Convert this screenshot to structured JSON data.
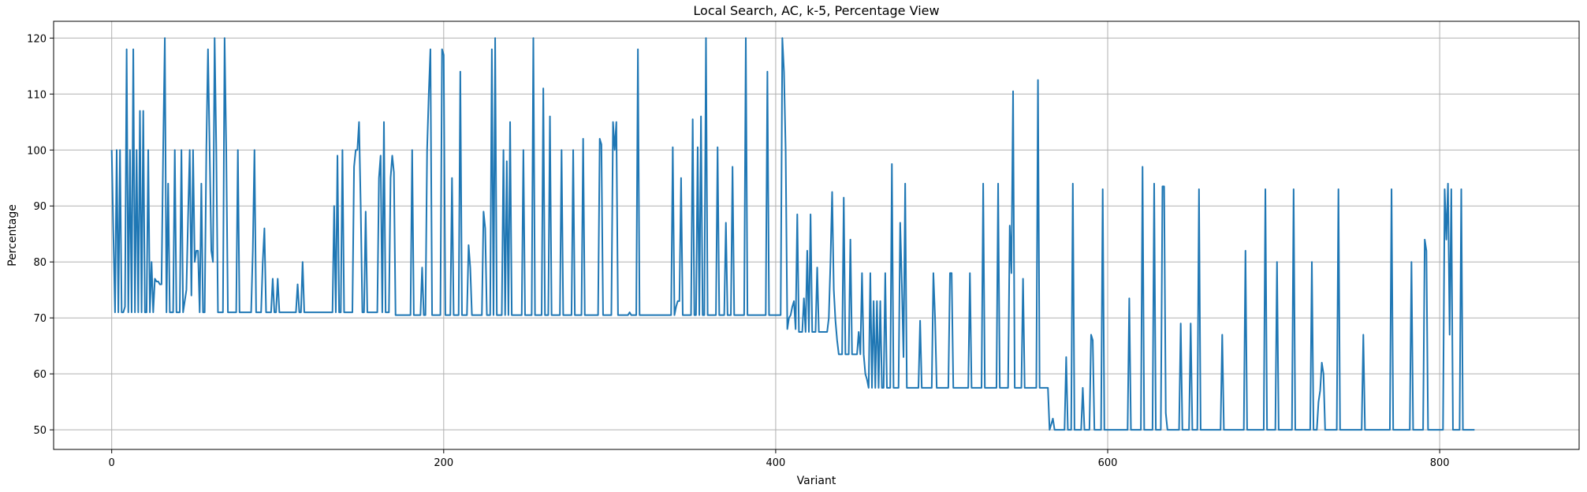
{
  "chart_data": {
    "type": "line",
    "title": "Local Search, AC, k-5, Percentage View",
    "xlabel": "Variant",
    "ylabel": "Percentage",
    "xlim": [
      -35,
      884
    ],
    "ylim": [
      46.5,
      123
    ],
    "xticks": [
      0,
      200,
      400,
      600,
      800
    ],
    "yticks": [
      50,
      60,
      70,
      80,
      90,
      100,
      110,
      120
    ],
    "grid": true,
    "line_color": "#1f77b4",
    "series": [
      {
        "name": "",
        "x_start": 0,
        "x_step": 1,
        "values": [
          100,
          85,
          71,
          100,
          71,
          100,
          71,
          71,
          72,
          118,
          71,
          100,
          71,
          118,
          71,
          100,
          71,
          107,
          71,
          107,
          71,
          71,
          100,
          71,
          80,
          71,
          77,
          76.5,
          76.5,
          76,
          76,
          100,
          120,
          71,
          94,
          71,
          71,
          71,
          100,
          71,
          71,
          71,
          100,
          71,
          73,
          75,
          88,
          100,
          74,
          100,
          80,
          82,
          82,
          71,
          94,
          71,
          71,
          100,
          118,
          100,
          82,
          80,
          120,
          100,
          71,
          71,
          71,
          71,
          120,
          100,
          71,
          71,
          71,
          71,
          71,
          71,
          100,
          71,
          71,
          71,
          71,
          71,
          71,
          71,
          71,
          82,
          100,
          71,
          71,
          71,
          71,
          80,
          86,
          71,
          71,
          71,
          71,
          77,
          71,
          71,
          77,
          71,
          71,
          71,
          71,
          71,
          71,
          71,
          71,
          71,
          71,
          71,
          76,
          71,
          71,
          80,
          71,
          71,
          71,
          71,
          71,
          71,
          71,
          71,
          71,
          71,
          71,
          71,
          71,
          71,
          71,
          71,
          71,
          71,
          90,
          71,
          99,
          71,
          71,
          100,
          71,
          71,
          71,
          71,
          71,
          71,
          97,
          100,
          100,
          105,
          90,
          71,
          71,
          89,
          71,
          71,
          71,
          71,
          71,
          71,
          71,
          95,
          99,
          71,
          105,
          71,
          71,
          71,
          95,
          99,
          96,
          70.5,
          70.5,
          70.5,
          70.5,
          70.5,
          70.5,
          70.5,
          70.5,
          70.5,
          70.5,
          100,
          70.5,
          70.5,
          70.5,
          70.5,
          70.5,
          79,
          70.5,
          70.5,
          100,
          110,
          118,
          70.5,
          70.5,
          70.5,
          70.5,
          70.5,
          70.5,
          118,
          117,
          70.5,
          70.5,
          70.5,
          70.5,
          95,
          70.5,
          70.5,
          70.5,
          70.5,
          114,
          70.5,
          70.5,
          70.5,
          70.5,
          83,
          79,
          70.5,
          70.5,
          70.5,
          70.5,
          70.5,
          70.5,
          70.5,
          89,
          86,
          70.5,
          70.5,
          70.5,
          118,
          70.5,
          120,
          70.5,
          70.5,
          70.5,
          70.5,
          100,
          70.5,
          98,
          70.5,
          105,
          70.5,
          70.5,
          70.5,
          70.5,
          70.5,
          70.5,
          70.5,
          100,
          70.5,
          70.5,
          70.5,
          70.5,
          70.5,
          120,
          70.5,
          70.5,
          70.5,
          70.5,
          70.5,
          111,
          70.5,
          70.5,
          70.5,
          106,
          70.5,
          70.5,
          70.5,
          70.5,
          70.5,
          70.5,
          100,
          70.5,
          70.5,
          70.5,
          70.5,
          70.5,
          70.5,
          100,
          70.5,
          70.5,
          70.5,
          70.5,
          70.5,
          102,
          70.5,
          70.5,
          70.5,
          70.5,
          70.5,
          70.5,
          70.5,
          70.5,
          70.5,
          102,
          101,
          70.5,
          70.5,
          70.5,
          70.5,
          70.5,
          70.5,
          105,
          100,
          105,
          70.5,
          70.5,
          70.5,
          70.5,
          70.5,
          70.5,
          70.5,
          71,
          70.5,
          70.5,
          70.5,
          70.5,
          118,
          70.5,
          70.5,
          70.5,
          70.5,
          70.5,
          70.5,
          70.5,
          70.5,
          70.5,
          70.5,
          70.5,
          70.5,
          70.5,
          70.5,
          70.5,
          70.5,
          70.5,
          70.5,
          70.5,
          70.5,
          100.5,
          70.5,
          72,
          73,
          73,
          95,
          70.5,
          70.5,
          70.5,
          70.5,
          70.5,
          70.5,
          105.5,
          70.5,
          70.5,
          100.5,
          70.5,
          106,
          70.5,
          70.5,
          120,
          70.5,
          70.5,
          70.5,
          70.5,
          70.5,
          70.5,
          100.5,
          70.5,
          70.5,
          70.5,
          70.5,
          87,
          70.5,
          70.5,
          70.5,
          97,
          70.5,
          70.5,
          70.5,
          70.5,
          70.5,
          70.5,
          70.5,
          120,
          70.5,
          70.5,
          70.5,
          70.5,
          70.5,
          70.5,
          70.5,
          70.5,
          70.5,
          70.5,
          70.5,
          70.5,
          114,
          70.5,
          70.5,
          70.5,
          70.5,
          70.5,
          70.5,
          70.5,
          70.5,
          120,
          114,
          100,
          68,
          70,
          70.5,
          72,
          73,
          68,
          88.5,
          67.5,
          67.5,
          67.5,
          73.5,
          67.5,
          82,
          67.5,
          88.5,
          67.5,
          67.5,
          67.5,
          79,
          67.5,
          67.5,
          67.5,
          67.5,
          67.5,
          67.5,
          70,
          80,
          92.5,
          75,
          69.5,
          66,
          63.5,
          63.5,
          63.5,
          91.5,
          63.5,
          63.5,
          63.5,
          84,
          63.5,
          63.5,
          63.5,
          63.5,
          67.5,
          63.5,
          78,
          63.5,
          60,
          59,
          57.5,
          78,
          57.5,
          73,
          57.5,
          73,
          57.5,
          73,
          57.5,
          57.5,
          78,
          57.5,
          57.5,
          57.5,
          97.5,
          57.5,
          57.5,
          57.5,
          57.5,
          87,
          76,
          63,
          94,
          57.5,
          57.5,
          57.5,
          57.5,
          57.5,
          57.5,
          57.5,
          57.5,
          69.5,
          57.5,
          57.5,
          57.5,
          57.5,
          57.5,
          57.5,
          57.5,
          78,
          70,
          57.5,
          57.5,
          57.5,
          57.5,
          57.5,
          57.5,
          57.5,
          57.5,
          78,
          78,
          57.5,
          57.5,
          57.5,
          57.5,
          57.5,
          57.5,
          57.5,
          57.5,
          57.5,
          57.5,
          78,
          57.5,
          57.5,
          57.5,
          57.5,
          57.5,
          57.5,
          57.5,
          94,
          57.5,
          57.5,
          57.5,
          57.5,
          57.5,
          57.5,
          57.5,
          57.5,
          94,
          57.5,
          57.5,
          57.5,
          57.5,
          57.5,
          57.5,
          86.5,
          78,
          110.5,
          57.5,
          57.5,
          57.5,
          57.5,
          57.5,
          77,
          57.5,
          57.5,
          57.5,
          57.5,
          57.5,
          57.5,
          57.5,
          57.5,
          112.5,
          57.5,
          57.5,
          57.5,
          57.5,
          57.5,
          57.5,
          50,
          51,
          52,
          50,
          50,
          50,
          50,
          50,
          50,
          50,
          63,
          50,
          50,
          50,
          94,
          50,
          50,
          50,
          50,
          50,
          57.5,
          50,
          50,
          50,
          50,
          67,
          66,
          50,
          50,
          50,
          50,
          50,
          93,
          50,
          50,
          50,
          50,
          50,
          50,
          50,
          50,
          50,
          50,
          50,
          50,
          50,
          50,
          50,
          73.5,
          50,
          50,
          50,
          50,
          50,
          50,
          50,
          97,
          50,
          50,
          50,
          50,
          50,
          50,
          94,
          50,
          50,
          50,
          50,
          93.5,
          93.5,
          53,
          50,
          50,
          50,
          50,
          50,
          50,
          50,
          50,
          69,
          50,
          50,
          50,
          50,
          50,
          69,
          50,
          50,
          50,
          50,
          93,
          50,
          50,
          50,
          50,
          50,
          50,
          50,
          50,
          50,
          50,
          50,
          50,
          50,
          67,
          50,
          50,
          50,
          50,
          50,
          50,
          50,
          50,
          50,
          50,
          50,
          50,
          50,
          82,
          50,
          50,
          50,
          50,
          50,
          50,
          50,
          50,
          50,
          50,
          50,
          93,
          50,
          50,
          50,
          50,
          50,
          50,
          80,
          50,
          50,
          50,
          50,
          50,
          50,
          50,
          50,
          50,
          93,
          50,
          50,
          50,
          50,
          50,
          50,
          50,
          50,
          50,
          50,
          80,
          50,
          50,
          50,
          55,
          57,
          62,
          60,
          50,
          50,
          50,
          50,
          50,
          50,
          50,
          50,
          93,
          50,
          50,
          50,
          50,
          50,
          50,
          50,
          50,
          50,
          50,
          50,
          50,
          50,
          50,
          67,
          50,
          50,
          50,
          50,
          50,
          50,
          50,
          50,
          50,
          50,
          50,
          50,
          50,
          50,
          50,
          50,
          93,
          50,
          50,
          50,
          50,
          50,
          50,
          50,
          50,
          50,
          50,
          50,
          80,
          50,
          50,
          50,
          50,
          50,
          50,
          50,
          84,
          82,
          50,
          50,
          50,
          50,
          50,
          50,
          50,
          50,
          50,
          50,
          93,
          84,
          94,
          67,
          93,
          50,
          50,
          50,
          50,
          50,
          93,
          50,
          50,
          50,
          50,
          50,
          50,
          50,
          50
        ]
      }
    ]
  }
}
